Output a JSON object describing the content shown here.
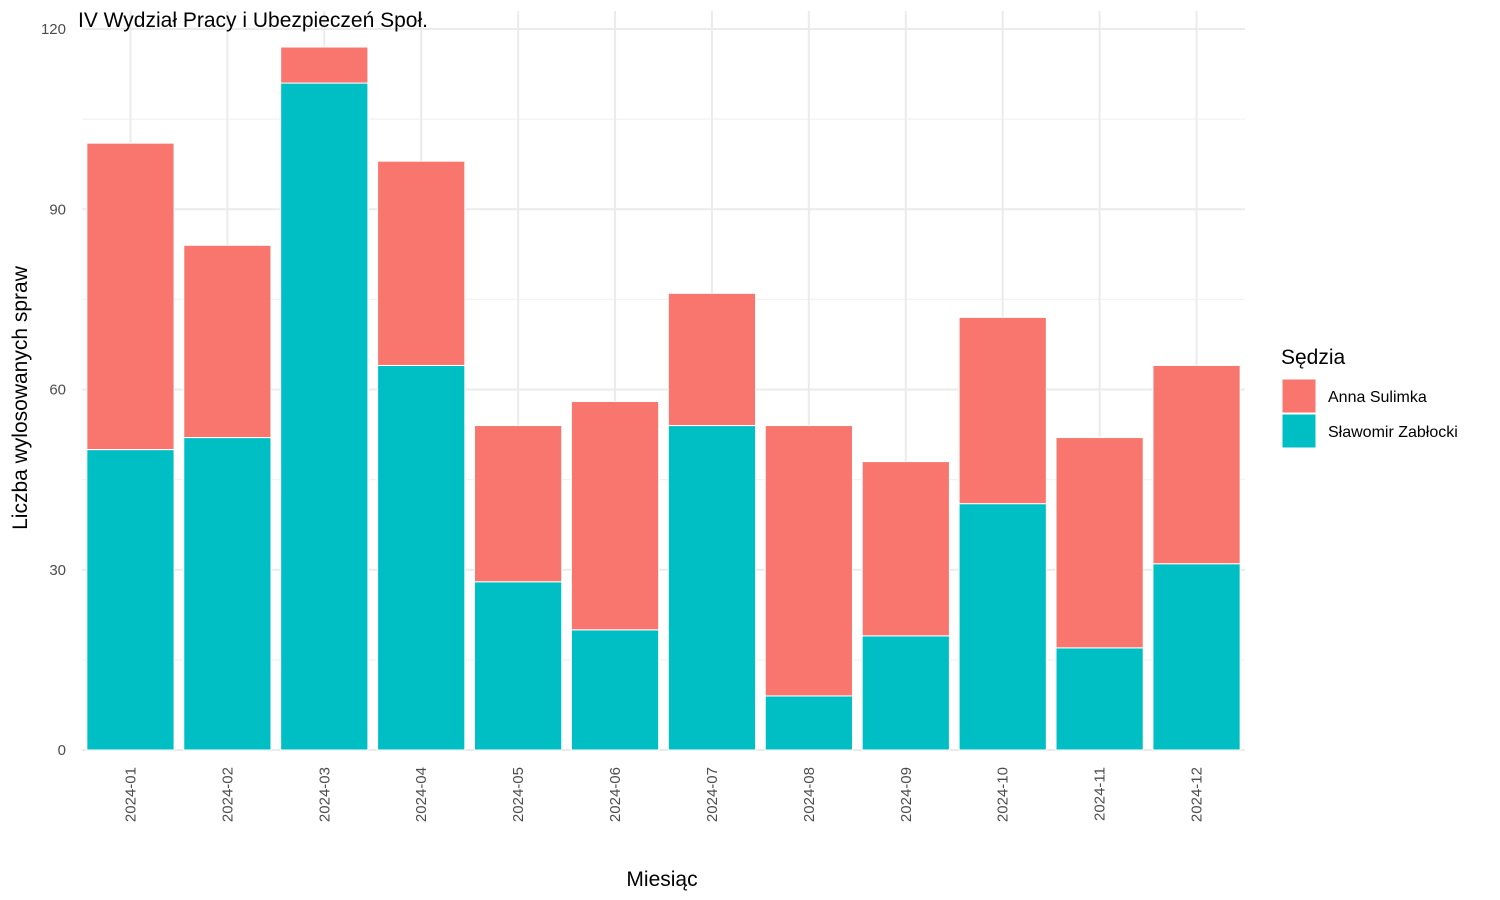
{
  "chart_data": {
    "type": "bar",
    "stacked": true,
    "title": "IV Wydział Pracy i Ubezpieczeń Społ.",
    "xlabel": "Miesiąc",
    "ylabel": "Liczba wylosowanych spraw",
    "ylim": [
      0,
      120
    ],
    "yticks": [
      "0",
      "30",
      "60",
      "90",
      "120"
    ],
    "grid": true,
    "legend_position": "right",
    "legend_title": "Sędzia",
    "categories": [
      "2024-01",
      "2024-02",
      "2024-03",
      "2024-04",
      "2024-05",
      "2024-06",
      "2024-07",
      "2024-08",
      "2024-09",
      "2024-10",
      "2024-11",
      "2024-12"
    ],
    "series": [
      {
        "name": "Sławomir Zabłocki",
        "color": "#00BFC4",
        "values": [
          50,
          52,
          111,
          64,
          28,
          20,
          54,
          9,
          19,
          41,
          17,
          31
        ]
      },
      {
        "name": "Anna Sulimka",
        "color": "#F8766D",
        "values": [
          51,
          32,
          6,
          34,
          26,
          38,
          22,
          45,
          29,
          31,
          35,
          33
        ]
      }
    ],
    "legend_order": [
      "Anna Sulimka",
      "Sławomir Zabłocki"
    ]
  }
}
